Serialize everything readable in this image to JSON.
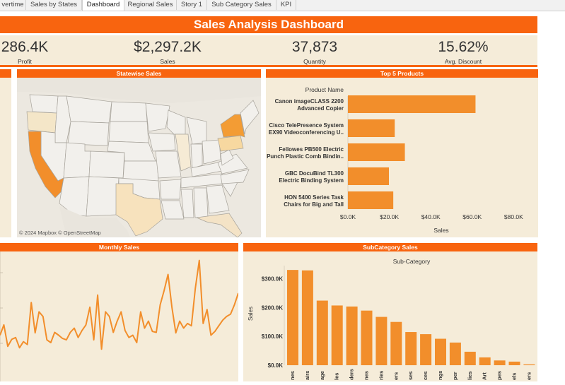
{
  "tabs": [
    {
      "label": "vertime",
      "active": false
    },
    {
      "label": "Sales by States",
      "active": false
    },
    {
      "label": "Dashboard",
      "active": true
    },
    {
      "label": "Regional Sales",
      "active": false
    },
    {
      "label": "Story 1",
      "active": false
    },
    {
      "label": "Sub Category Sales",
      "active": false
    },
    {
      "label": "KPI",
      "active": false
    }
  ],
  "dashboard_title": "Sales Analysis Dashboard",
  "kpis": {
    "profit": {
      "value": "286.4K",
      "label": "Profit"
    },
    "sales": {
      "value": "$2,297.2K",
      "label": "Sales"
    },
    "quantity": {
      "value": "37,873",
      "label": "Quantity"
    },
    "discount": {
      "value": "15.62%",
      "label": "Avg. Discount"
    }
  },
  "statewise": {
    "title": "Statewise Sales",
    "attribution": "© 2024 Mapbox  © OpenStreetMap"
  },
  "colors": {
    "accent": "#f8640f",
    "bar": "#f28e2b",
    "panel_bg": "#f5ecd9",
    "map_bg": "#ece8e0"
  },
  "top5": {
    "title": "Top 5 Products"
  },
  "monthly": {
    "title": "Monthly Sales"
  },
  "subcat": {
    "title": "SubCategory Sales"
  },
  "chart_data": [
    {
      "type": "bar",
      "orientation": "horizontal",
      "title": "Top 5 Products",
      "ylabel": "Product Name",
      "xlabel": "Sales",
      "categories": [
        [
          "Canon imageCLASS 2200",
          "Advanced Copier"
        ],
        [
          "Cisco TelePresence System",
          "EX90 Videoconferencing U.."
        ],
        [
          "Fellowes PB500 Electric",
          "Punch Plastic Comb Bindin.."
        ],
        [
          "GBC DocuBind TL300",
          "Electric Binding System"
        ],
        [
          "HON 5400 Series Task",
          "Chairs for Big and Tall"
        ]
      ],
      "values": [
        61600,
        22600,
        27500,
        19800,
        21900
      ],
      "xlim": [
        0,
        85000
      ],
      "xticks": [
        0,
        20000,
        40000,
        60000,
        80000
      ],
      "xtick_labels": [
        "$0.0K",
        "$20.0K",
        "$40.0K",
        "$60.0K",
        "$80.0K"
      ]
    },
    {
      "type": "line",
      "title": "Monthly Sales",
      "values": [
        90,
        112,
        66,
        81,
        85,
        63,
        76,
        70,
        160,
        95,
        140,
        130,
        80,
        74,
        96,
        90,
        83,
        80,
        96,
        105,
        85,
        100,
        112,
        150,
        80,
        176,
        60,
        140,
        130,
        96,
        120,
        140,
        100,
        85,
        90,
        74,
        140,
        105,
        120,
        98,
        96,
        155,
        185,
        220,
        150,
        95,
        120,
        105,
        115,
        110,
        190,
        250,
        115,
        145,
        90,
        98,
        110,
        122,
        130,
        135,
        155,
        180
      ],
      "ylim": [
        0,
        260
      ]
    },
    {
      "type": "bar",
      "title": "SubCategory Sales",
      "xlabel": "Sub-Category",
      "ylabel": "Sales",
      "categories": [
        "Phones",
        "Chairs",
        "Storage",
        "Tables",
        "Binders",
        "Machines",
        "Accessories",
        "Copiers",
        "Bookcases",
        "Appliances",
        "Furnishings",
        "Paper",
        "Supplies",
        "Art",
        "Envelopes",
        "Labels",
        "Fasteners"
      ],
      "tick_labels": [
        "nes",
        "airs",
        "age",
        "les",
        "ders",
        "nes",
        "ries",
        "ers",
        "ses",
        "ces",
        "ngs",
        "per",
        "lies",
        "Art",
        "pes",
        "els",
        "ers"
      ],
      "values": [
        330000,
        328500,
        223800,
        206900,
        203400,
        189200,
        167400,
        150000,
        114900,
        107500,
        91700,
        78500,
        46700,
        27100,
        16500,
        12500,
        3000
      ],
      "ylim": [
        0,
        345000
      ],
      "yticks": [
        0,
        100000,
        200000,
        300000
      ],
      "ytick_labels": [
        "$0.0K",
        "$100.0K",
        "$200.0K",
        "$300.0K"
      ]
    }
  ]
}
